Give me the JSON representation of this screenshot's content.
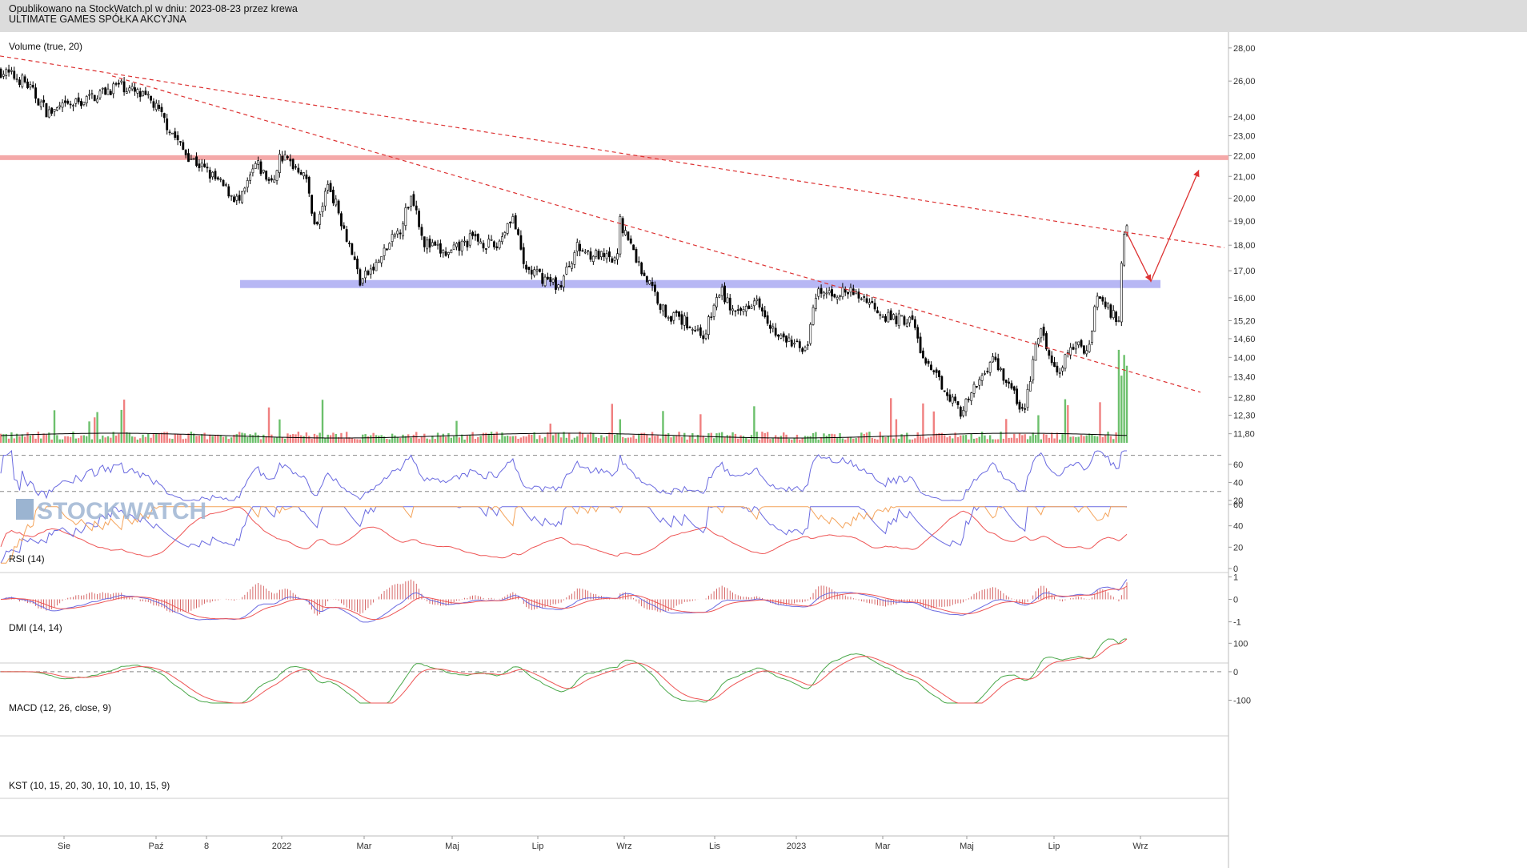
{
  "header": {
    "line1": "Opublikowano na StockWatch.pl w dniu: 2023-08-23 przez krewa",
    "line2": "ULTIMATE GAMES SPÓŁKA AKCYJNA"
  },
  "watermark": "STOCKWATCH",
  "colors": {
    "up": "#6cc06c",
    "down": "#f08080",
    "resistance": "#f4a9a9",
    "support": "#b7b7f4",
    "trend": "#dd3333",
    "rsi": "#6a6ae0",
    "dmi_adx": "#ee5555",
    "dmi_plus": "#6a6ae0",
    "dmi_minus": "#f4a35a",
    "macd": "#6a6ae0",
    "signal": "#ee5555",
    "kst": "#4aa84a",
    "kst_signal": "#ee5555"
  },
  "chart_data": [
    {
      "type": "candlestick",
      "title": "",
      "legend": "Volume (true, 20)",
      "x_labels": [
        "Sie",
        "Paź",
        "8",
        "2022",
        "Mar",
        "Maj",
        "Lip",
        "Wrz",
        "Lis",
        "2023",
        "Mar",
        "Maj",
        "Lip",
        "Wrz"
      ],
      "y_ticks": [
        "28,00",
        "26,00",
        "24,00",
        "23,00",
        "22,00",
        "21,00",
        "20,00",
        "19,00",
        "18,00",
        "17,00",
        "16,00",
        "15,20",
        "14,60",
        "14,00",
        "13,40",
        "12,80",
        "12,30",
        "11,80"
      ],
      "y_tick_values": [
        28.0,
        26.0,
        24.0,
        23.0,
        22.0,
        21.0,
        20.0,
        19.0,
        18.0,
        17.0,
        16.0,
        15.2,
        14.6,
        14.0,
        13.4,
        12.8,
        12.3,
        11.8
      ],
      "y_scale": "log",
      "ylim": [
        11.5,
        28.5
      ],
      "close_path": [
        [
          0,
          26.6
        ],
        [
          30,
          26.0
        ],
        [
          60,
          24.2
        ],
        [
          100,
          24.8
        ],
        [
          150,
          25.8
        ],
        [
          190,
          24.8
        ],
        [
          230,
          22.2
        ],
        [
          300,
          19.8
        ],
        [
          320,
          21.6
        ],
        [
          340,
          20.6
        ],
        [
          350,
          22.0
        ],
        [
          380,
          21.2
        ],
        [
          395,
          18.6
        ],
        [
          410,
          20.7
        ],
        [
          440,
          17.7
        ],
        [
          450,
          16.6
        ],
        [
          470,
          17.2
        ],
        [
          500,
          18.7
        ],
        [
          515,
          20.2
        ],
        [
          530,
          18.1
        ],
        [
          560,
          17.6
        ],
        [
          590,
          18.3
        ],
        [
          620,
          17.9
        ],
        [
          640,
          19.3
        ],
        [
          655,
          17.1
        ],
        [
          700,
          16.4
        ],
        [
          720,
          17.9
        ],
        [
          770,
          17.3
        ],
        [
          775,
          19.0
        ],
        [
          800,
          17.1
        ],
        [
          810,
          16.6
        ],
        [
          830,
          15.5
        ],
        [
          860,
          15.1
        ],
        [
          880,
          14.7
        ],
        [
          900,
          16.3
        ],
        [
          920,
          15.3
        ],
        [
          945,
          16.1
        ],
        [
          970,
          14.7
        ],
        [
          1000,
          14.3
        ],
        [
          1010,
          14.5
        ],
        [
          1020,
          16.1
        ],
        [
          1060,
          16.2
        ],
        [
          1080,
          16.0
        ],
        [
          1110,
          15.3
        ],
        [
          1140,
          15.2
        ],
        [
          1155,
          13.8
        ],
        [
          1180,
          13.1
        ],
        [
          1200,
          12.4
        ],
        [
          1210,
          12.7
        ],
        [
          1240,
          14.0
        ],
        [
          1260,
          13.2
        ],
        [
          1280,
          12.3
        ],
        [
          1290,
          13.8
        ],
        [
          1300,
          14.9
        ],
        [
          1320,
          13.4
        ],
        [
          1340,
          14.4
        ],
        [
          1360,
          14.2
        ],
        [
          1370,
          16.1
        ],
        [
          1385,
          15.6
        ],
        [
          1398,
          15.2
        ],
        [
          1402,
          17.8
        ],
        [
          1405,
          18.6
        ]
      ],
      "volume_scale_max": 1,
      "horizontal_levels": [
        {
          "name": "resistance",
          "value": 21.9
        },
        {
          "name": "support",
          "value": 16.5
        }
      ],
      "trendlines": [
        {
          "name": "upper-trend",
          "from": [
            0,
            27.5
          ],
          "to": [
            1530,
            17.9
          ]
        },
        {
          "name": "lower-trend",
          "from": [
            140,
            26.3
          ],
          "to": [
            1500,
            12.95
          ]
        }
      ],
      "projection": [
        [
          1408,
          18.5
        ],
        [
          1438,
          16.6
        ],
        [
          1498,
          21.3
        ]
      ]
    },
    {
      "type": "line",
      "legend": "RSI (14)",
      "y_ticks": [
        "60",
        "40",
        "20"
      ],
      "ylim": [
        20,
        75
      ],
      "levels": [
        70,
        30
      ]
    },
    {
      "type": "line",
      "legend": "DMI (14, 14)",
      "y_ticks": [
        "60",
        "40",
        "20",
        "0"
      ],
      "ylim": [
        0,
        60
      ]
    },
    {
      "type": "line",
      "legend": "MACD (12, 26, close, 9)",
      "y_ticks": [
        "1",
        "0",
        "-1"
      ],
      "ylim": [
        -1.3,
        1.3
      ]
    },
    {
      "type": "line",
      "legend": "KST (10, 15, 20, 30, 10, 10, 10, 15, 9)",
      "y_ticks": [
        "100",
        "0",
        "-100"
      ],
      "ylim": [
        -110,
        115
      ],
      "levels": [
        0
      ]
    }
  ]
}
